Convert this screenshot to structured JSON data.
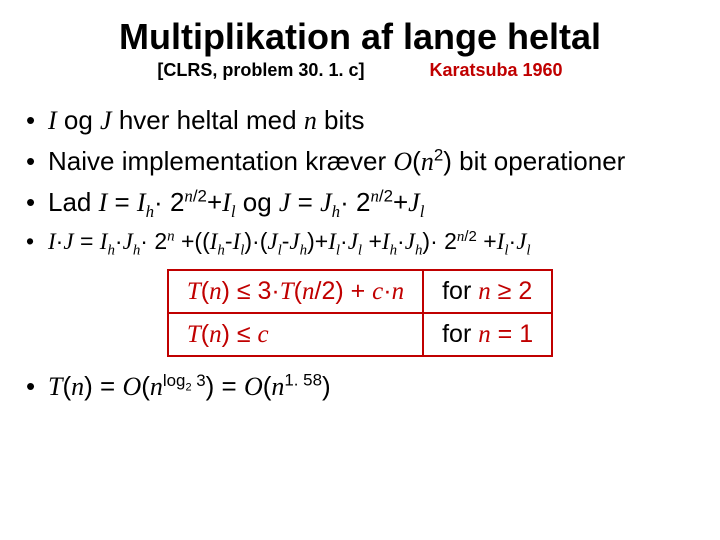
{
  "title": {
    "text": "Multiplikation af lange heltal",
    "fontsize": 36
  },
  "subtitle": {
    "left": "[CLRS, problem 30. 1. c]",
    "right": "Karatsuba 1960",
    "right_color": "#c00000",
    "fontsize": 18
  },
  "bullets": {
    "fontsize": 26,
    "b4_fontsize": 23,
    "items": [
      {
        "pre": "I",
        "mid1": " og ",
        "j": "J",
        "mid2": " hver heltal med ",
        "n": "n",
        "post": " bits"
      },
      {
        "pre": "Naive implementation kræver ",
        "o": "O",
        "lp": "(",
        "n": "n",
        "sq": "2",
        "rp": ")",
        "post": " bit operationer"
      },
      {
        "pre": "Lad  ",
        "i": "I",
        "eq": " = ",
        "ih": "I",
        "hsub": "h",
        "dot1": "·",
        "two1": " 2",
        "exp1a": "n",
        "exp1b": "/2",
        "plus1": "+",
        "il": "I",
        "lsub": "l",
        "og": "  og  ",
        "j": "J",
        "eq2": " = ",
        "jh": "J",
        "jhsub": "h",
        "dot2": "·",
        "two2": " 2",
        "exp2a": "n",
        "exp2b": "/2",
        "plus2": "+",
        "jl": "J",
        "jlsub": "l"
      },
      {
        "i": "I",
        "d1": "·",
        "j": "J",
        "eq": " = ",
        "ih": "I",
        "ihs": "h",
        "d2": "·",
        "jh": "J",
        "jhs": "h",
        "d3": "·",
        "tw": " 2",
        "en": "n",
        "pl1": " +((",
        "ih2": "I",
        "ih2s": "h",
        "mn1": "-",
        "il": "I",
        "ils": "l",
        "rp1": ")·(",
        "jl": "J",
        "jls": "l",
        "mn2": "-",
        "jh2": "J",
        "jh2s": "h",
        "rp2": ")+",
        "il2": "I",
        "il2s": "l",
        "d4": "·",
        "jl2": "J",
        "jl2s": "l",
        "pl2": " +",
        "ih3": "I",
        "ih3s": "h",
        "d5": "·",
        "jh3": "J",
        "jh3s": "h",
        "rp3": ")·",
        "tw2": " 2",
        "en2a": "n",
        "en2b": "/2",
        "pl3": " +",
        "il3": "I",
        "il3s": "l",
        "d6": "·",
        "jl3": "J",
        "jl3s": "l"
      }
    ]
  },
  "table": {
    "fontsize": 25,
    "border_color": "#c00000",
    "text_color": "#c00000",
    "rows": [
      {
        "c1": {
          "t": "T",
          "lp": "(",
          "n": "n",
          "rp": ") ≤ 3·",
          "t2": "T",
          "lp2": "(",
          "n2": "n",
          "half": "/2) + ",
          "c": "c",
          "dn": "·",
          "n3": "n"
        },
        "c2": {
          "pre": "for ",
          "n": "n",
          "ge": " ≥ 2"
        }
      },
      {
        "c1": {
          "t": "T",
          "lp": "(",
          "n": "n",
          "rp": ") ≤ ",
          "c": "c"
        },
        "c2": {
          "pre": "for ",
          "n": "n",
          "eq": " = 1"
        }
      }
    ]
  },
  "final": {
    "fontsize": 26,
    "t": "T",
    "lp": "(",
    "n": "n",
    "rp": ") = ",
    "o1": "O",
    "lp2": "(",
    "n2": "n",
    "log": "log",
    "two": "2",
    "three": " 3",
    "rp2": ") = ",
    "o2": "O",
    "lp3": "(",
    "n3": "n",
    "exp": "1. 58",
    "rp3": ")"
  }
}
